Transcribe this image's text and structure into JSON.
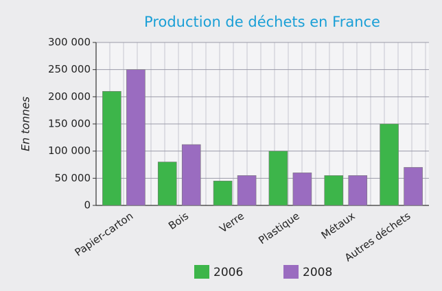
{
  "chart_data": {
    "type": "bar",
    "title": "Production de déchets en France",
    "y_label": "En tonnes",
    "categories": [
      "Papier-carton",
      "Bois",
      "Verre",
      "Plastique",
      "Métaux",
      "Autres déchets"
    ],
    "series": [
      {
        "name": "2006",
        "color": "#3db54a",
        "values": [
          210000,
          80000,
          45000,
          100000,
          55000,
          150000
        ]
      },
      {
        "name": "2008",
        "color": "#9a6cc0",
        "values": [
          250000,
          112000,
          55000,
          60000,
          55000,
          70000
        ]
      }
    ],
    "ylim": [
      0,
      300000
    ],
    "yticks": [
      0,
      {
        "value": 50000,
        "label": "50 000"
      },
      {
        "value": 100000,
        "label": "100 000"
      },
      {
        "value": 150000,
        "label": "150 000"
      },
      {
        "value": 200000,
        "label": "200 000"
      },
      {
        "value": 250000,
        "label": "250 000"
      },
      {
        "value": 300000,
        "label": "300 000"
      }
    ],
    "grid": true
  }
}
